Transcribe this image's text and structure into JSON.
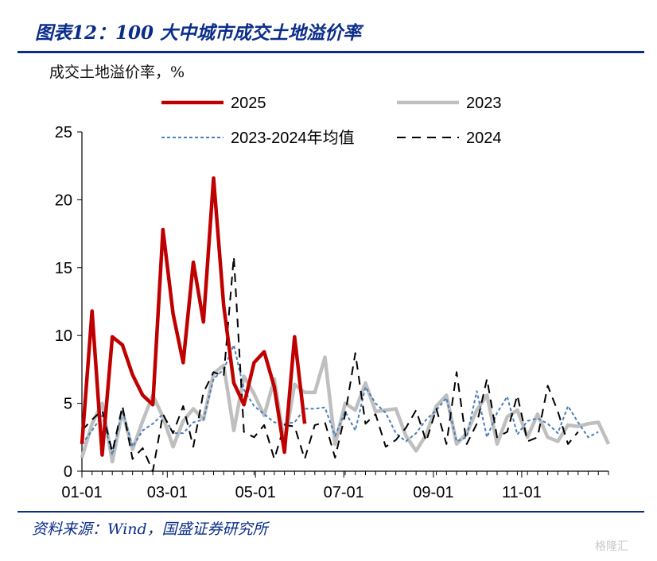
{
  "title": "图表12：100 大中城市成交土地溢价率",
  "source": "资料来源：Wind，国盛证券研究所",
  "watermark": "格隆汇",
  "colors": {
    "title": "#0b2d8a",
    "s2025": "#c00000",
    "s2023": "#bfbfbf",
    "savg": "#4a7ebb",
    "s2024": "#000000"
  },
  "chart_data": {
    "type": "line",
    "ylabel": "成交土地溢价率，%",
    "ylim": [
      0,
      25
    ],
    "yticks": [
      "0",
      "5",
      "10",
      "15",
      "20",
      "25"
    ],
    "xlim": [
      0,
      52
    ],
    "xticks": [
      {
        "label": "01-01",
        "x": 0
      },
      {
        "label": "03-01",
        "x": 8.43
      },
      {
        "label": "05-01",
        "x": 17.14
      },
      {
        "label": "07-01",
        "x": 25.86
      },
      {
        "label": "09-01",
        "x": 34.71
      },
      {
        "label": "11-01",
        "x": 43.43
      }
    ],
    "legend": [
      "2025",
      "2023",
      "2023-2024年均值",
      "2024"
    ],
    "series": [
      {
        "name": "2025",
        "values": [
          2.0,
          11.8,
          1.2,
          9.9,
          9.3,
          7.1,
          5.6,
          4.9,
          17.8,
          11.6,
          8.0,
          15.4,
          11.0,
          21.6,
          12.2,
          6.5,
          4.9,
          8.0,
          8.8,
          6.2,
          1.4,
          9.9,
          3.5
        ]
      },
      {
        "name": "2023",
        "values": [
          1.0,
          3.5,
          5.0,
          0.7,
          4.4,
          1.6,
          3.7,
          5.6,
          4.0,
          1.8,
          3.7,
          4.6,
          3.8,
          7.2,
          7.8,
          3.0,
          7.0,
          5.7,
          4.1,
          6.8,
          2.0,
          6.4,
          5.8,
          5.8,
          8.4,
          2.0,
          5.0,
          4.5,
          6.5,
          4.4,
          4.5,
          4.6,
          2.6,
          1.5,
          2.7,
          4.8,
          5.6,
          2.0,
          2.8,
          4.5,
          5.6,
          2.0,
          4.0,
          4.5,
          2.5,
          4.2,
          2.5,
          2.2,
          3.4,
          3.3,
          3.5,
          3.6,
          2.0
        ]
      },
      {
        "name": "2023-2024年均值",
        "values": [
          2.0,
          3.0,
          4.1,
          1.2,
          4.5,
          1.8,
          3.0,
          3.5,
          4.2,
          2.8,
          2.8,
          3.6,
          3.8,
          6.8,
          7.5,
          9.3,
          6.0,
          4.8,
          4.2,
          3.6,
          3.5,
          3.6,
          4.6,
          4.6,
          4.7,
          2.6,
          4.4,
          3.0,
          6.2,
          5.0,
          4.3,
          2.8,
          2.2,
          2.8,
          3.8,
          4.5,
          5.4,
          2.2,
          2.5,
          5.9,
          2.5,
          4.3,
          5.5,
          2.7,
          3.7,
          3.9,
          3.5,
          2.8,
          4.8,
          3.6,
          2.5,
          2.9
        ]
      },
      {
        "name": "2024",
        "values": [
          3.0,
          3.8,
          4.5,
          1.4,
          4.8,
          0.9,
          1.7,
          0.0,
          4.2,
          2.8,
          4.8,
          1.8,
          5.8,
          7.3,
          7.0,
          15.8,
          2.9,
          2.5,
          3.4,
          0.9,
          3.4,
          3.3,
          0.9,
          3.4,
          3.6,
          1.0,
          4.2,
          8.7,
          3.5,
          4.2,
          1.8,
          2.3,
          3.2,
          4.5,
          2.2,
          4.6,
          2.0,
          7.3,
          2.0,
          3.5,
          6.8,
          2.5,
          2.9,
          5.6,
          2.2,
          2.5,
          6.3,
          4.4,
          2.0,
          2.9
        ]
      }
    ]
  }
}
